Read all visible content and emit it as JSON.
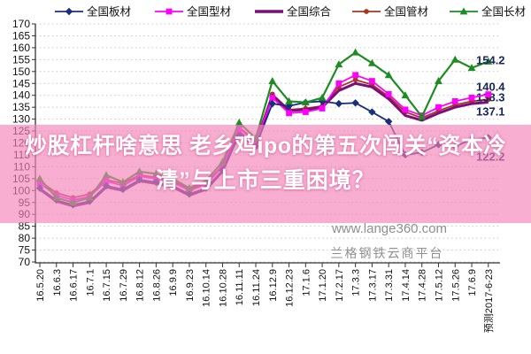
{
  "chart_data": {
    "type": "line",
    "title": "",
    "xlabel": "",
    "ylabel": "",
    "ylim": [
      70,
      170
    ],
    "ytick_step": 5,
    "grid": "horizontal-dotted",
    "legend_position": "top",
    "x_labels": [
      "16.5.20",
      "16.6.3",
      "16.6.17",
      "16.7.1",
      "16.7.15",
      "16.7.29",
      "16.8.12",
      "16.8.26",
      "16.9.9",
      "16.9.23",
      "16.10.14",
      "16.10.28",
      "16.11.11",
      "16.11.24",
      "16.12.9",
      "16.12.23",
      "17.1.6",
      "17.1.20",
      "17.2.17",
      "17.3.3",
      "17.3.17",
      "17.3.31",
      "17.4.14",
      "17.4.28",
      "17.5.12",
      "17.5.26",
      "17.6.9",
      "预测2017-6-23"
    ],
    "series": [
      {
        "key": "pipe",
        "name": "全国管材",
        "color": "#a5391d",
        "marker": "circle",
        "line_width": 1.8,
        "values": [
          104,
          99,
          97,
          98.5,
          104.5,
          103,
          106.5,
          105.5,
          104,
          100.5,
          103,
          110.5,
          126.5,
          121,
          140.5,
          134,
          134.5,
          135.5,
          143.5,
          146.5,
          144.5,
          139.5,
          133,
          130.5,
          133.5,
          136,
          137.5,
          138.3
        ],
        "end_label": "138.3",
        "end_label_dy": -2
      },
      {
        "key": "composite",
        "name": "全国综合",
        "color": "#7c0d7c",
        "marker": "none",
        "line_width": 3,
        "values": [
          100.5,
          95.5,
          93.5,
          95,
          101.5,
          100,
          104,
          103,
          101.5,
          98,
          100.5,
          108,
          124.5,
          119,
          140,
          133.5,
          134,
          135,
          142,
          145,
          143.5,
          138.5,
          131.5,
          129.5,
          132.5,
          135,
          136.5,
          137.1
        ],
        "end_label": "137.1",
        "end_label_dy": 11
      },
      {
        "key": "section",
        "name": "全国型材",
        "color": "#ff00ff",
        "marker": "square",
        "line_width": 1.8,
        "values": [
          103,
          98,
          96,
          97.5,
          104,
          102,
          106,
          105,
          103.5,
          100,
          102.5,
          110,
          126,
          120.5,
          139,
          132.5,
          133,
          134.5,
          145,
          148.5,
          146,
          140.5,
          134,
          131.5,
          135,
          137.5,
          139,
          140.4
        ],
        "end_label": "140.4",
        "end_label_dy": -8
      },
      {
        "key": "plate",
        "name": "全国板材",
        "color": "#1a2f7c",
        "marker": "diamond",
        "line_width": 1.8,
        "values": [
          101,
          96,
          94,
          95.5,
          102,
          100.5,
          104.5,
          103.5,
          102,
          98.5,
          101,
          108.5,
          123,
          118.5,
          136.5,
          135.5,
          137,
          137.5,
          136.5,
          136.8,
          133,
          129,
          115,
          116,
          119.3,
          118.5,
          121.5,
          122.2
        ],
        "end_label": "122.2",
        "end_label_dy": 22
      },
      {
        "key": "long",
        "name": "全国长材",
        "color": "#1d8c21",
        "marker": "triangle",
        "line_width": 2.2,
        "values": [
          105,
          97,
          95,
          97,
          106.5,
          103.5,
          108,
          107,
          105,
          101,
          104,
          112,
          128.5,
          122,
          146,
          137.5,
          137,
          139,
          153,
          158,
          153.5,
          148.5,
          140,
          131,
          146,
          155,
          151.5,
          154.2
        ],
        "end_label": "154.2",
        "end_label_dy": -1
      }
    ],
    "legend_order": [
      "plate",
      "section",
      "composite",
      "pipe",
      "long"
    ],
    "end_label_color": "#17255c",
    "axis_color": "#333333",
    "grid_color": "#c8c8c8",
    "tick_label_color": "#111111"
  },
  "overlay": {
    "band_color": "rgba(243,132,184,0.66)",
    "headline_line1": "炒股杠杆啥意思 老乡鸡ipo的第五次闯关“资本冷",
    "headline_line2": "清”与上市三重困境？"
  },
  "watermarks": {
    "site": "www.lange360.com",
    "platform": "兰格钢铁云商平台"
  }
}
